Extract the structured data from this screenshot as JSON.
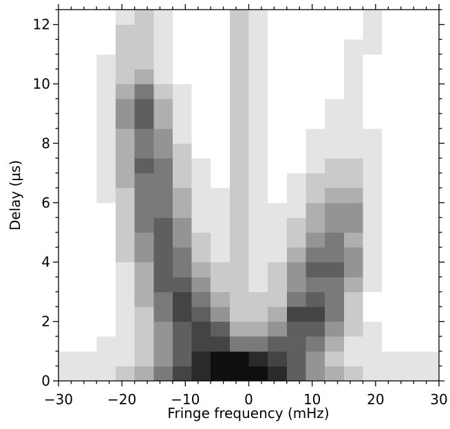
{
  "chart_data": {
    "type": "heatmap",
    "xlabel": "Fringe frequency (mHz)",
    "ylabel": "Delay (µs)",
    "colormap": "Greys",
    "xlim": [
      -30,
      30
    ],
    "ylim": [
      0,
      12.5
    ],
    "xticks": [
      {
        "value": -30,
        "label": "−30"
      },
      {
        "value": -20,
        "label": "−20"
      },
      {
        "value": -10,
        "label": "−10"
      },
      0,
      10,
      20,
      30
    ],
    "yticks": [
      0,
      2,
      4,
      6,
      8,
      10,
      12
    ],
    "xminorticks": [
      -28,
      -26,
      -24,
      -22,
      -18,
      -16,
      -14,
      -12,
      -8,
      -6,
      -4,
      -2,
      2,
      4,
      6,
      8,
      12,
      14,
      16,
      18,
      22,
      24,
      26,
      28
    ],
    "yminorticks": [
      0.5,
      1,
      1.5,
      2.5,
      3,
      3.5,
      4.5,
      5,
      5.5,
      6.5,
      7,
      7.5,
      8.5,
      9,
      9.5,
      10.5,
      11,
      11.5,
      12.5
    ],
    "x_edges": [
      -30,
      -27,
      -24,
      -21,
      -18,
      -15,
      -12,
      -9,
      -6,
      -3,
      0,
      3,
      6,
      9,
      12,
      15,
      18,
      21,
      24,
      27,
      30
    ],
    "y_edges": [
      0,
      0.5,
      1,
      1.5,
      2,
      2.5,
      3,
      3.5,
      4,
      4.5,
      5,
      5.5,
      6,
      6.5,
      7,
      7.5,
      8,
      8.5,
      9,
      9.5,
      10,
      10.5,
      11,
      11.5,
      12,
      12.5
    ],
    "z": [
      [
        1,
        1,
        1,
        2,
        3,
        5,
        7,
        8,
        9,
        9,
        9,
        8,
        6,
        4,
        3,
        2,
        1,
        1,
        1,
        1
      ],
      [
        1,
        1,
        1,
        1,
        2,
        4,
        6,
        8,
        9,
        9,
        8,
        7,
        6,
        4,
        2,
        1,
        1,
        1,
        1,
        1
      ],
      [
        0,
        0,
        1,
        1,
        2,
        4,
        6,
        7,
        7,
        5,
        5,
        6,
        6,
        5,
        3,
        1,
        1,
        0,
        0,
        0
      ],
      [
        0,
        0,
        0,
        1,
        2,
        4,
        6,
        7,
        6,
        3,
        3,
        4,
        6,
        6,
        4,
        2,
        1,
        0,
        0,
        0
      ],
      [
        0,
        0,
        0,
        1,
        2,
        5,
        7,
        6,
        4,
        2,
        2,
        3,
        7,
        7,
        5,
        2,
        0,
        0,
        0,
        0
      ],
      [
        0,
        0,
        0,
        1,
        3,
        5,
        7,
        5,
        3,
        2,
        2,
        2,
        5,
        6,
        5,
        2,
        0,
        0,
        0,
        0
      ],
      [
        0,
        0,
        0,
        1,
        3,
        6,
        6,
        4,
        2,
        2,
        1,
        2,
        4,
        5,
        5,
        3,
        1,
        0,
        0,
        0
      ],
      [
        0,
        0,
        0,
        1,
        3,
        6,
        5,
        3,
        2,
        2,
        1,
        2,
        4,
        6,
        6,
        4,
        1,
        0,
        0,
        0
      ],
      [
        0,
        0,
        0,
        2,
        4,
        6,
        5,
        2,
        1,
        2,
        1,
        1,
        3,
        5,
        5,
        4,
        1,
        0,
        0,
        0
      ],
      [
        0,
        0,
        0,
        2,
        4,
        6,
        4,
        2,
        1,
        2,
        1,
        1,
        2,
        4,
        5,
        3,
        1,
        0,
        0,
        0
      ],
      [
        0,
        0,
        0,
        2,
        5,
        6,
        4,
        1,
        1,
        2,
        1,
        1,
        2,
        3,
        4,
        4,
        1,
        0,
        0,
        0
      ],
      [
        0,
        0,
        0,
        2,
        5,
        5,
        3,
        1,
        1,
        2,
        1,
        1,
        1,
        3,
        4,
        4,
        1,
        0,
        0,
        0
      ],
      [
        0,
        0,
        1,
        2,
        5,
        5,
        3,
        1,
        1,
        2,
        1,
        0,
        1,
        2,
        3,
        3,
        1,
        0,
        0,
        0
      ],
      [
        0,
        0,
        1,
        3,
        5,
        5,
        2,
        1,
        0,
        2,
        1,
        0,
        1,
        2,
        2,
        2,
        1,
        0,
        0,
        0
      ],
      [
        0,
        0,
        1,
        3,
        6,
        5,
        2,
        1,
        0,
        2,
        1,
        0,
        0,
        1,
        2,
        2,
        1,
        0,
        0,
        0
      ],
      [
        0,
        0,
        1,
        3,
        5,
        4,
        2,
        0,
        0,
        2,
        1,
        0,
        0,
        1,
        1,
        1,
        1,
        0,
        0,
        0
      ],
      [
        0,
        0,
        1,
        3,
        5,
        4,
        1,
        0,
        0,
        2,
        1,
        0,
        0,
        1,
        1,
        1,
        1,
        0,
        0,
        0
      ],
      [
        0,
        0,
        1,
        4,
        6,
        3,
        1,
        0,
        0,
        2,
        1,
        0,
        0,
        0,
        1,
        1,
        0,
        0,
        0,
        0
      ],
      [
        0,
        0,
        1,
        4,
        6,
        3,
        1,
        0,
        0,
        2,
        1,
        0,
        0,
        0,
        1,
        1,
        0,
        0,
        0,
        0
      ],
      [
        0,
        0,
        1,
        3,
        5,
        2,
        1,
        0,
        0,
        2,
        1,
        0,
        0,
        0,
        0,
        1,
        0,
        0,
        0,
        0
      ],
      [
        0,
        0,
        1,
        2,
        3,
        1,
        0,
        0,
        0,
        2,
        1,
        0,
        0,
        0,
        0,
        1,
        0,
        0,
        0,
        0
      ],
      [
        0,
        0,
        1,
        2,
        2,
        1,
        0,
        0,
        0,
        2,
        1,
        0,
        0,
        0,
        0,
        1,
        0,
        0,
        0,
        0
      ],
      [
        0,
        0,
        0,
        2,
        2,
        1,
        0,
        0,
        0,
        2,
        1,
        0,
        0,
        0,
        0,
        1,
        1,
        0,
        0,
        0
      ],
      [
        0,
        0,
        0,
        2,
        2,
        1,
        0,
        0,
        0,
        2,
        1,
        0,
        0,
        0,
        0,
        0,
        1,
        0,
        0,
        0
      ],
      [
        0,
        0,
        0,
        1,
        2,
        1,
        0,
        0,
        0,
        2,
        1,
        0,
        0,
        0,
        0,
        0,
        1,
        0,
        0,
        0
      ]
    ]
  }
}
